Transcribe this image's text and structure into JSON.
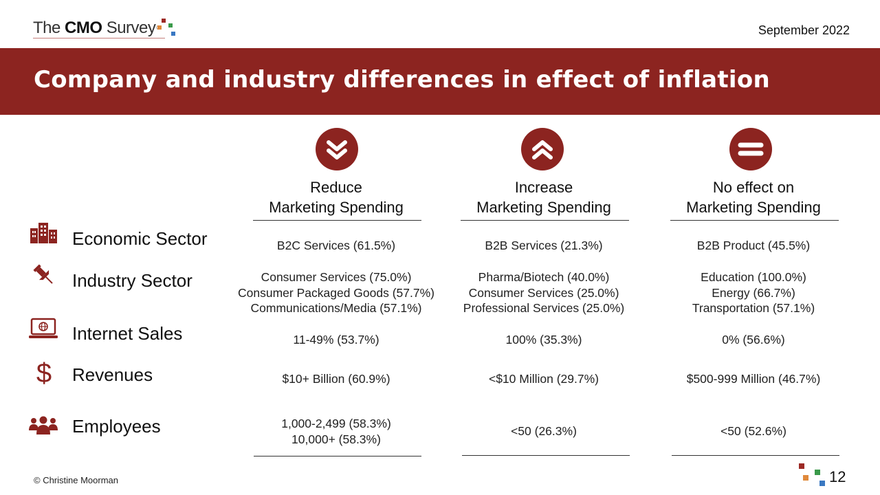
{
  "header": {
    "logo": {
      "prefix": "The",
      "brand": "CMO",
      "suffix": "Survey",
      "reg": "®"
    },
    "date": "September 2022",
    "title": "Company and industry differences in effect of inflation"
  },
  "columns": [
    {
      "icon": "double-chevron-down-icon",
      "title_line1": "Reduce",
      "title_line2": "Marketing Spending"
    },
    {
      "icon": "double-chevron-up-icon",
      "title_line1": "Increase",
      "title_line2": "Marketing Spending"
    },
    {
      "icon": "equals-icon",
      "title_line1": "No effect on",
      "title_line2": "Marketing Spending"
    }
  ],
  "rows": [
    {
      "label": "Economic Sector",
      "icon": "buildings-icon",
      "cells": [
        [
          "B2C Services (61.5%)"
        ],
        [
          "B2B Services (21.3%)"
        ],
        [
          "B2B Product (45.5%)"
        ]
      ]
    },
    {
      "label": "Industry Sector",
      "icon": "pushpin-icon",
      "cells": [
        [
          "Consumer Services (75.0%)",
          "Consumer Packaged Goods (57.7%)",
          "Communications/Media (57.1%)"
        ],
        [
          "Pharma/Biotech (40.0%)",
          "Consumer Services (25.0%)",
          "Professional Services (25.0%)"
        ],
        [
          "Education (100.0%)",
          "Energy (66.7%)",
          "Transportation (57.1%)"
        ]
      ]
    },
    {
      "label": "Internet Sales",
      "icon": "laptop-globe-icon",
      "cells": [
        [
          "11-49% (53.7%)"
        ],
        [
          "100% (35.3%)"
        ],
        [
          "0% (56.6%)"
        ]
      ]
    },
    {
      "label": "Revenues",
      "icon": "dollar-icon",
      "cells": [
        [
          "$10+ Billion (60.9%)"
        ],
        [
          "<$10 Million (29.7%)"
        ],
        [
          "$500-999 Million (46.7%)"
        ]
      ]
    },
    {
      "label": "Employees",
      "icon": "people-group-icon",
      "cells": [
        [
          "1,000-2,499 (58.3%)",
          "10,000+ (58.3%)"
        ],
        [
          "<50 (26.3%)"
        ],
        [
          "<50 (52.6%)"
        ]
      ]
    }
  ],
  "footer": {
    "copyright": "© Christine Moorman",
    "page_number": "12"
  },
  "colors": {
    "brand_red": "#8c2420",
    "logo_red": "#9c2a25",
    "logo_orange": "#e08a3c",
    "logo_green": "#3a9a4a",
    "logo_blue": "#3a78c2"
  }
}
